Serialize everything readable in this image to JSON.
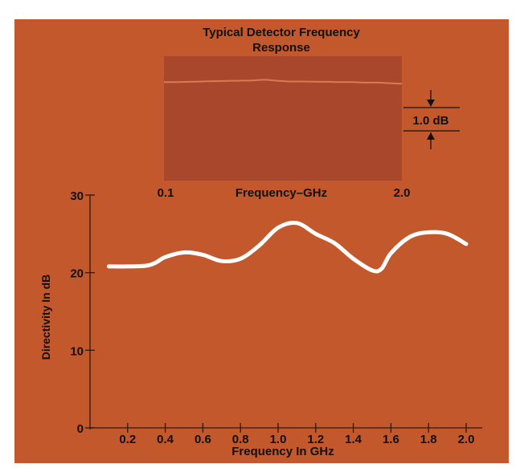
{
  "chart_data": [
    {
      "type": "line",
      "title": "Typical Detector Frequency Response",
      "title_lines": [
        "Typical Detector Frequency",
        "Response"
      ],
      "xlabel": "Frequency–GHz",
      "x_tick_labels": [
        "0.1",
        "2.0"
      ],
      "xlim": [
        0.1,
        2.0
      ],
      "ylim": [
        -5,
        1
      ],
      "annotation": "1.0 dB",
      "grid": false,
      "series": [
        {
          "x": [
            0.1,
            0.2,
            0.3,
            0.4,
            0.5,
            0.6,
            0.7,
            0.8,
            0.9,
            1.0,
            1.1,
            1.2,
            1.3,
            1.4,
            1.5,
            1.6,
            1.7,
            1.8,
            1.9,
            2.0
          ],
          "values": [
            0.0,
            0.0,
            0.02,
            0.05,
            0.08,
            0.1,
            0.12,
            0.14,
            0.2,
            0.12,
            0.05,
            0.05,
            0.03,
            0.02,
            0.0,
            0.0,
            -0.05,
            -0.05,
            -0.1,
            -0.15
          ]
        }
      ]
    },
    {
      "type": "line",
      "xlabel": "Frequency In GHz",
      "ylabel": "Directivity In dB",
      "x_tick_labels": [
        "0.2",
        "0.4",
        "0.6",
        "0.8",
        "1.0",
        "1.2",
        "1.4",
        "1.6",
        "1.8",
        "2.0"
      ],
      "x_ticks": [
        0.2,
        0.4,
        0.6,
        0.8,
        1.0,
        1.2,
        1.4,
        1.6,
        1.8,
        2.0
      ],
      "y_tick_labels": [
        "0",
        "10",
        "20",
        "30"
      ],
      "y_ticks": [
        0,
        10,
        20,
        30
      ],
      "xlim": [
        0,
        2.1
      ],
      "ylim": [
        0,
        30
      ],
      "grid": false,
      "series": [
        {
          "x": [
            0.1,
            0.2,
            0.3,
            0.35,
            0.4,
            0.5,
            0.6,
            0.7,
            0.8,
            0.9,
            1.0,
            1.1,
            1.2,
            1.3,
            1.4,
            1.5,
            1.55,
            1.6,
            1.7,
            1.8,
            1.9,
            2.0
          ],
          "values": [
            20.8,
            20.8,
            20.9,
            21.3,
            22.0,
            22.6,
            22.3,
            21.5,
            21.8,
            23.5,
            25.8,
            26.4,
            25.0,
            23.8,
            21.8,
            20.3,
            20.5,
            22.5,
            24.6,
            25.2,
            25.0,
            23.7
          ]
        }
      ]
    }
  ]
}
